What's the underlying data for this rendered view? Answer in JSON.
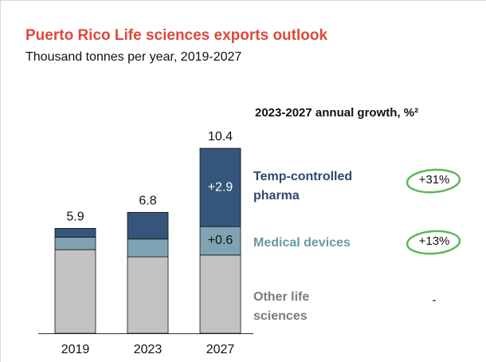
{
  "chart_data": {
    "type": "stacked_bar",
    "title": "Puerto Rico Life sciences exports outlook",
    "subtitle": "Thousand tonnes per year, 2019-2027",
    "legend_heading": "2023-2027 annual growth, %²",
    "categories": [
      "2019",
      "2023",
      "2027"
    ],
    "series": [
      {
        "name": "Other life sciences",
        "color": "#c3c1c2",
        "text_color": "#7b7b7b",
        "growth": "-",
        "values": [
          4.7,
          4.3,
          4.4
        ]
      },
      {
        "name": "Medical devices",
        "color": "#7fa3b2",
        "text_color": "#6a98a9",
        "growth": "+13%",
        "values": [
          0.7,
          1.0,
          1.6
        ]
      },
      {
        "name": "Temp-controlled pharma",
        "color": "#35557a",
        "text_color": "#2e4770",
        "growth": "+31%",
        "values": [
          0.5,
          1.5,
          4.4
        ]
      }
    ],
    "totals": [
      5.9,
      6.8,
      10.4
    ],
    "annotations": [
      "+2.9",
      "+0.6"
    ]
  }
}
